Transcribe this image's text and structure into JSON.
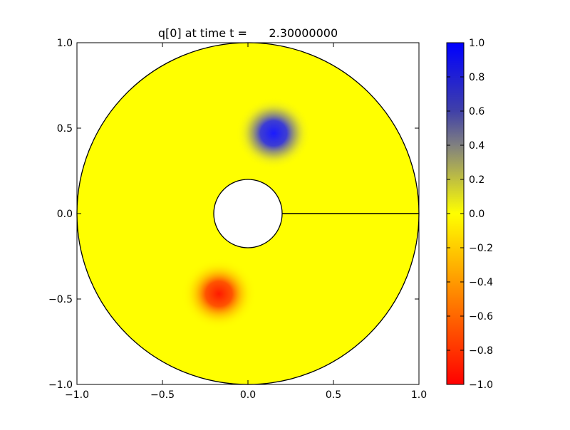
{
  "chart_data": {
    "type": "heatmap",
    "title": "q[0] at time t =      2.30000000",
    "xlabel": "",
    "ylabel": "",
    "xlim": [
      -1.0,
      1.0
    ],
    "ylim": [
      -1.0,
      1.0
    ],
    "x_ticks": [
      -1.0,
      -0.5,
      0.0,
      0.5,
      1.0
    ],
    "x_tick_labels": [
      "−1.0",
      "−0.5",
      "0.0",
      "0.5",
      "1.0"
    ],
    "y_ticks": [
      -1.0,
      -0.5,
      0.0,
      0.5,
      1.0
    ],
    "y_tick_labels": [
      "−1.0",
      "−0.5",
      "0.0",
      "0.5",
      "1.0"
    ],
    "domain": {
      "shape": "annulus",
      "inner_radius": 0.2,
      "outer_radius": 1.0,
      "seam_line": {
        "from": [
          0.2,
          0.0
        ],
        "to": [
          1.0,
          0.0
        ]
      }
    },
    "background_value": 0.0,
    "features": [
      {
        "name": "positive-blob",
        "center": [
          0.15,
          0.47
        ],
        "peak_value": 1.0
      },
      {
        "name": "negative-blob",
        "center": [
          -0.17,
          -0.47
        ],
        "peak_value": -1.0
      }
    ],
    "colorbar": {
      "range": [
        -1.0,
        1.0
      ],
      "ticks": [
        1.0,
        0.8,
        0.6,
        0.4,
        0.2,
        0.0,
        -0.2,
        -0.4,
        -0.6,
        -0.8,
        -1.0
      ],
      "tick_labels": [
        "1.0",
        "0.8",
        "0.6",
        "0.4",
        "0.2",
        "0.0",
        "−0.2",
        "−0.4",
        "−0.6",
        "−0.8",
        "−1.0"
      ],
      "colors": {
        "min": "#ff0000",
        "mid": "#ffff00",
        "max": "#0000ff"
      }
    }
  }
}
